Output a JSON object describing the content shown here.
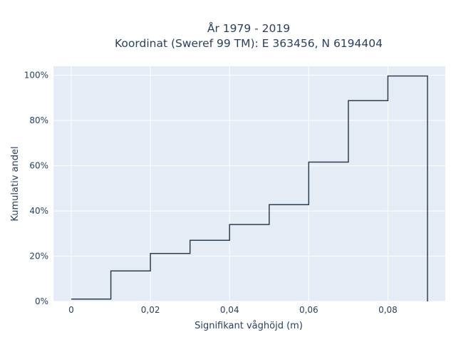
{
  "chart_data": {
    "type": "line",
    "line_shape": "step",
    "title_lines": [
      "År 1979 - 2019",
      "Koordinat (Sweref 99 TM): E 363456, N 6194404"
    ],
    "xlabel": "Signifikant våghöjd (m)",
    "ylabel": "Kumulativ andel",
    "xlim": [
      -0.0045,
      0.0945
    ],
    "ylim": [
      0,
      1.04
    ],
    "x_ticks": [
      0,
      0.02,
      0.04,
      0.06,
      0.08
    ],
    "x_tick_labels": [
      "0",
      "0,02",
      "0,04",
      "0,06",
      "0,08"
    ],
    "y_ticks": [
      0,
      0.2,
      0.4,
      0.6,
      0.8,
      1.0
    ],
    "y_tick_labels": [
      "0%",
      "20%",
      "40%",
      "60%",
      "80%",
      "100%"
    ],
    "x": [
      0,
      0.01,
      0.02,
      0.03,
      0.04,
      0.05,
      0.06,
      0.07,
      0.08,
      0.09
    ],
    "y": [
      0.01,
      0.135,
      0.212,
      0.27,
      0.34,
      0.428,
      0.616,
      0.888,
      0.997,
      1.0
    ],
    "grid": true,
    "line_color": "#2e3e50",
    "background_color": "#e5ecf6"
  }
}
